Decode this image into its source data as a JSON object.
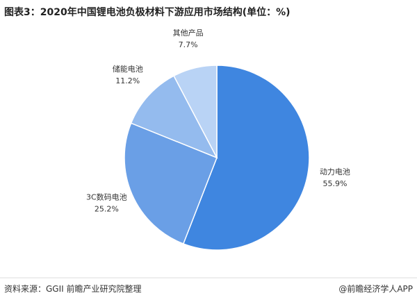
{
  "chart_data": {
    "type": "pie",
    "title": "图表3：2020年中国锂电池负极材料下游应用市场结构(单位：%)",
    "categories": [
      "动力电池",
      "3C数码电池",
      "储能电池",
      "其他产品"
    ],
    "values": [
      55.9,
      25.2,
      11.2,
      7.7
    ],
    "value_labels": [
      "55.9%",
      "25.2%",
      "11.2%",
      "7.7%"
    ],
    "colors": [
      "#3f86e0",
      "#6a9fe6",
      "#94bbee",
      "#b9d3f5"
    ]
  },
  "footer": {
    "source": "资料来源：GGII 前瞻产业研究院整理",
    "brand": "@前瞻经济学人APP"
  }
}
